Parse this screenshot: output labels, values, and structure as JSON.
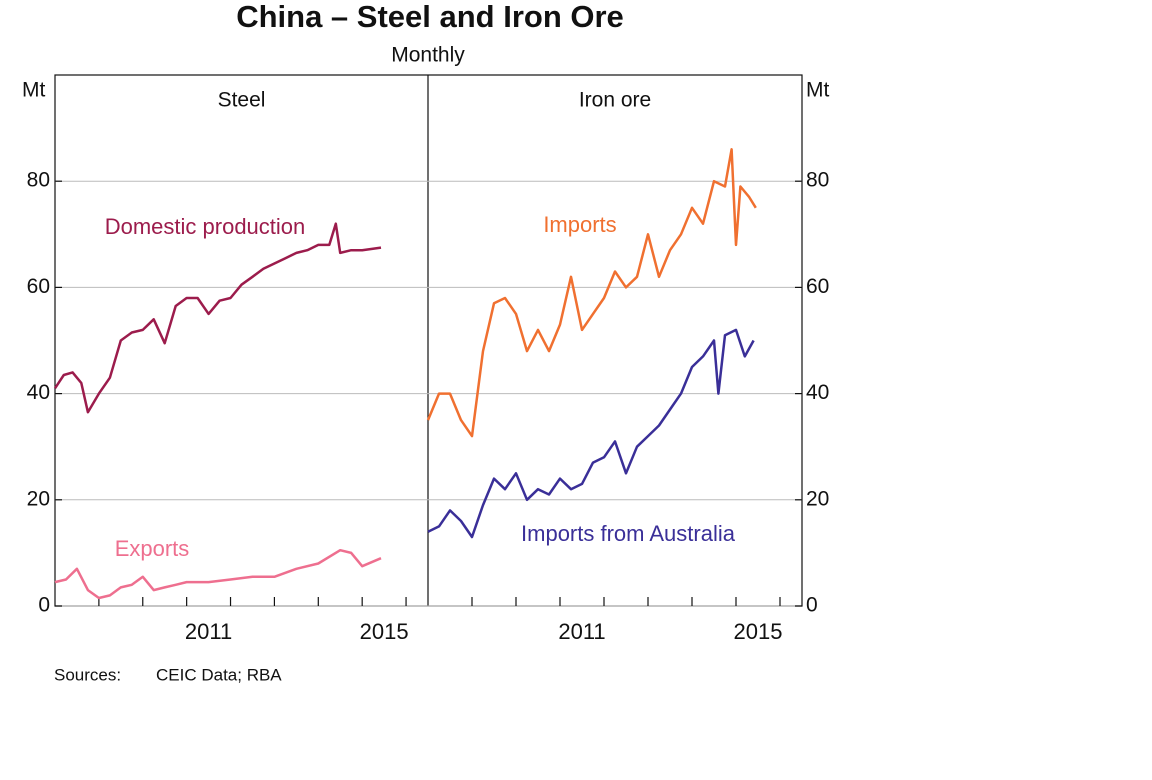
{
  "header": {
    "title": "China – Steel and Iron Ore",
    "subtitle": "Monthly"
  },
  "footer": {
    "label": "Sources:",
    "text": "CEIC Data; RBA"
  },
  "chart_data": [
    {
      "type": "line",
      "title": "Steel",
      "ylabel": "Mt",
      "xlim": [
        2008,
        2016.5
      ],
      "ylim": [
        0,
        100
      ],
      "xticks": [
        {
          "value": 2011.5,
          "label": "2011"
        },
        {
          "value": 2015.5,
          "label": "2015"
        }
      ],
      "xticks_minor": [
        2009,
        2010,
        2011,
        2012,
        2013,
        2014,
        2015,
        2016
      ],
      "yticks": [
        0,
        20,
        40,
        60,
        80
      ],
      "grid": true,
      "series": [
        {
          "name": "Domestic production",
          "color": "#9c1c4c",
          "x": [
            2008,
            2008.2,
            2008.4,
            2008.6,
            2008.75,
            2009,
            2009.25,
            2009.5,
            2009.75,
            2010,
            2010.25,
            2010.5,
            2010.75,
            2011,
            2011.25,
            2011.5,
            2011.75,
            2012,
            2012.25,
            2012.5,
            2012.75,
            2013,
            2013.25,
            2013.5,
            2013.75,
            2014,
            2014.25,
            2014.4,
            2014.5,
            2014.75,
            2015,
            2015.43
          ],
          "values": [
            41,
            43.5,
            44,
            42,
            36.5,
            40,
            43,
            50,
            51.5,
            52,
            54,
            49.5,
            56.5,
            58,
            58,
            55,
            57.5,
            58,
            60.5,
            62,
            63.5,
            64.5,
            65.5,
            66.5,
            67,
            68,
            68,
            72,
            66.5,
            67,
            67,
            67.5
          ]
        },
        {
          "name": "Exports",
          "color": "#ee6f8f",
          "x": [
            2008,
            2008.25,
            2008.5,
            2008.75,
            2009,
            2009.25,
            2009.5,
            2009.75,
            2010,
            2010.25,
            2010.5,
            2010.75,
            2011,
            2011.5,
            2012,
            2012.5,
            2013,
            2013.5,
            2014,
            2014.5,
            2014.75,
            2015,
            2015.43
          ],
          "values": [
            4.5,
            5,
            7,
            3,
            1.5,
            2,
            3.5,
            4,
            5.5,
            3,
            3.5,
            4,
            4.5,
            4.5,
            5,
            5.5,
            5.5,
            7,
            8,
            10.5,
            10,
            7.5,
            9
          ]
        }
      ]
    },
    {
      "type": "line",
      "title": "Iron ore",
      "ylabel": "Mt",
      "xlim": [
        2008,
        2016.5
      ],
      "ylim": [
        0,
        100
      ],
      "xticks": [
        {
          "value": 2011.5,
          "label": "2011"
        },
        {
          "value": 2015.5,
          "label": "2015"
        }
      ],
      "xticks_minor": [
        2009,
        2010,
        2011,
        2012,
        2013,
        2014,
        2015,
        2016
      ],
      "yticks": [
        0,
        20,
        40,
        60,
        80
      ],
      "grid": true,
      "series": [
        {
          "name": "Imports",
          "color": "#f07030",
          "x": [
            2008,
            2008.25,
            2008.5,
            2008.75,
            2009,
            2009.25,
            2009.5,
            2009.75,
            2010,
            2010.25,
            2010.5,
            2010.75,
            2011,
            2011.25,
            2011.5,
            2011.75,
            2012,
            2012.25,
            2012.5,
            2012.75,
            2013,
            2013.25,
            2013.5,
            2013.75,
            2014,
            2014.25,
            2014.5,
            2014.75,
            2014.9,
            2015,
            2015.1,
            2015.3,
            2015.45
          ],
          "values": [
            35,
            40,
            40,
            35,
            32,
            48,
            57,
            58,
            55,
            48,
            52,
            48,
            53,
            62,
            52,
            55,
            58,
            63,
            60,
            62,
            70,
            62,
            67,
            70,
            75,
            72,
            80,
            79,
            86,
            68,
            79,
            77,
            75
          ]
        },
        {
          "name": "Imports from Australia",
          "color": "#3a2f98",
          "x": [
            2008,
            2008.25,
            2008.5,
            2008.75,
            2009,
            2009.25,
            2009.5,
            2009.75,
            2010,
            2010.25,
            2010.5,
            2010.75,
            2011,
            2011.25,
            2011.5,
            2011.75,
            2012,
            2012.25,
            2012.5,
            2012.75,
            2013,
            2013.25,
            2013.5,
            2013.75,
            2014,
            2014.25,
            2014.5,
            2014.6,
            2014.75,
            2015,
            2015.2,
            2015.4
          ],
          "values": [
            14,
            15,
            18,
            16,
            13,
            19,
            24,
            22,
            25,
            20,
            22,
            21,
            24,
            22,
            23,
            27,
            28,
            31,
            25,
            30,
            32,
            34,
            37,
            40,
            45,
            47,
            50,
            40,
            51,
            52,
            47,
            50
          ]
        }
      ]
    }
  ]
}
